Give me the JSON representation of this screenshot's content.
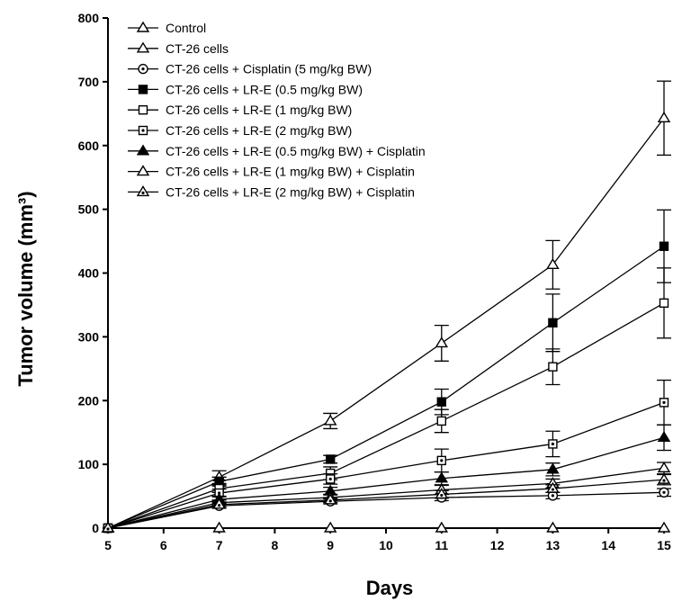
{
  "chart_data": {
    "type": "line",
    "xlabel": "Days",
    "ylabel": "Tumor volume (mm³)",
    "xlim": [
      5,
      15
    ],
    "ylim": [
      0,
      800
    ],
    "xticks": [
      5,
      6,
      7,
      8,
      9,
      10,
      11,
      12,
      13,
      14,
      15
    ],
    "yticks": [
      0,
      100,
      200,
      300,
      400,
      500,
      600,
      700,
      800
    ],
    "grid": false,
    "legend_position": "top-left",
    "x": [
      5,
      7,
      9,
      11,
      13,
      15
    ],
    "series": [
      {
        "name": "Control",
        "marker": "filled-circle",
        "values": [
          0,
          0,
          0,
          0,
          0,
          0
        ],
        "errors": [
          0,
          0,
          0,
          0,
          0,
          0
        ]
      },
      {
        "name": "CT-26 cells",
        "marker": "open-circle",
        "values": [
          0,
          80,
          168,
          290,
          413,
          643
        ],
        "errors": [
          0,
          10,
          12,
          28,
          38,
          58
        ]
      },
      {
        "name": "CT-26 cells + Cisplatin (5 mg/kg BW)",
        "marker": "circle-dot",
        "values": [
          0,
          35,
          42,
          48,
          51,
          56
        ],
        "errors": [
          0,
          4,
          4,
          5,
          5,
          6
        ]
      },
      {
        "name": "CT-26 cells + LR-E (0.5 mg/kg BW)",
        "marker": "filled-square",
        "values": [
          0,
          73,
          108,
          198,
          322,
          442
        ],
        "errors": [
          0,
          7,
          6,
          20,
          45,
          57
        ]
      },
      {
        "name": "CT-26 cells + LR-E (1 mg/kg BW)",
        "marker": "open-square",
        "values": [
          0,
          62,
          86,
          168,
          253,
          353
        ],
        "errors": [
          0,
          6,
          10,
          18,
          28,
          55
        ]
      },
      {
        "name": "CT-26 cells + LR-E (2 mg/kg BW)",
        "marker": "square-dot",
        "values": [
          0,
          55,
          77,
          106,
          132,
          197
        ],
        "errors": [
          0,
          6,
          8,
          18,
          20,
          35
        ]
      },
      {
        "name": "CT-26 cells + LR-E (0.5 mg/kg BW) + Cisplatin",
        "marker": "filled-triangle",
        "values": [
          0,
          45,
          58,
          78,
          92,
          142
        ],
        "errors": [
          0,
          5,
          6,
          10,
          10,
          20
        ]
      },
      {
        "name": "CT-26 cells + LR-E (1 mg/kg BW) + Cisplatin",
        "marker": "open-triangle",
        "values": [
          0,
          40,
          48,
          60,
          70,
          94
        ],
        "errors": [
          0,
          4,
          5,
          7,
          7,
          9
        ]
      },
      {
        "name": "CT-26 cells + LR-E (2 mg/kg BW) + Cisplatin",
        "marker": "triangle-dot",
        "values": [
          0,
          37,
          44,
          53,
          62,
          76
        ],
        "errors": [
          0,
          4,
          4,
          6,
          6,
          8
        ]
      }
    ]
  }
}
